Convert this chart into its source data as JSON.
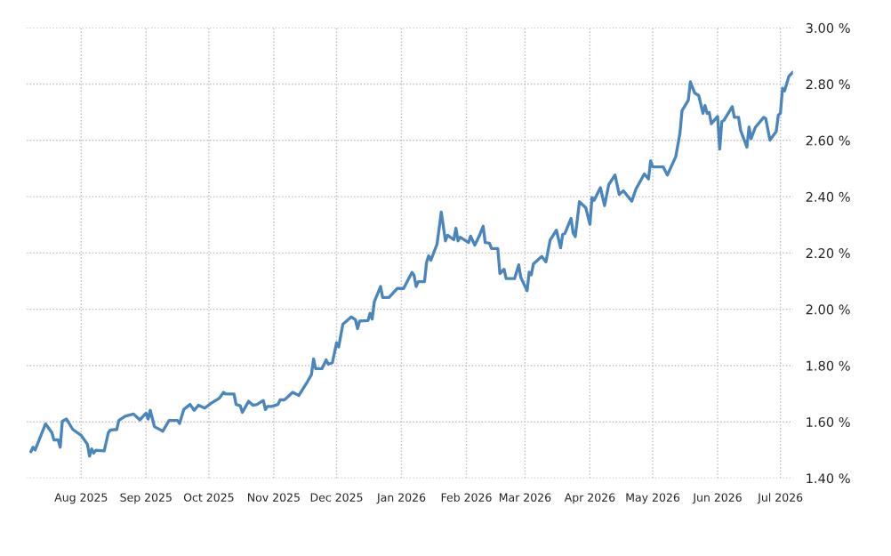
{
  "chart_data": {
    "type": "line",
    "x": [
      "2025-07-08",
      "2025-07-09",
      "2025-07-10",
      "2025-07-15",
      "2025-07-18",
      "2025-07-19",
      "2025-07-21",
      "2025-07-22",
      "2025-07-23",
      "2025-07-25",
      "2025-07-28",
      "2025-08-01",
      "2025-08-04",
      "2025-08-05",
      "2025-08-06",
      "2025-08-07",
      "2025-08-08",
      "2025-08-12",
      "2025-08-14",
      "2025-08-15",
      "2025-08-18",
      "2025-08-19",
      "2025-08-22",
      "2025-08-26",
      "2025-08-29",
      "2025-09-01",
      "2025-09-02",
      "2025-09-03",
      "2025-09-05",
      "2025-09-07",
      "2025-09-09",
      "2025-09-12",
      "2025-09-16",
      "2025-09-17",
      "2025-09-19",
      "2025-09-22",
      "2025-09-24",
      "2025-09-26",
      "2025-09-29",
      "2025-10-02",
      "2025-10-06",
      "2025-10-08",
      "2025-10-09",
      "2025-10-13",
      "2025-10-14",
      "2025-10-16",
      "2025-10-17",
      "2025-10-20",
      "2025-10-22",
      "2025-10-24",
      "2025-10-27",
      "2025-10-28",
      "2025-10-29",
      "2025-10-31",
      "2025-11-03",
      "2025-11-04",
      "2025-11-06",
      "2025-11-07",
      "2025-11-10",
      "2025-11-13",
      "2025-11-17",
      "2025-11-19",
      "2025-11-20",
      "2025-11-21",
      "2025-11-24",
      "2025-11-26",
      "2025-11-27",
      "2025-11-29",
      "2025-12-01",
      "2025-12-02",
      "2025-12-04",
      "2025-12-08",
      "2025-12-10",
      "2025-12-11",
      "2025-12-12",
      "2025-12-16",
      "2025-12-17",
      "2025-12-18",
      "2025-12-19",
      "2025-12-22",
      "2025-12-23",
      "2025-12-26",
      "2025-12-30",
      "2026-01-02",
      "2026-01-06",
      "2026-01-07",
      "2026-01-08",
      "2026-01-09",
      "2026-01-12",
      "2026-01-13",
      "2026-01-14",
      "2026-01-15",
      "2026-01-18",
      "2026-01-20",
      "2026-01-22",
      "2026-01-23",
      "2026-01-26",
      "2026-01-27",
      "2026-01-28",
      "2026-01-29",
      "2026-02-02",
      "2026-02-03",
      "2026-02-05",
      "2026-02-07",
      "2026-02-09",
      "2026-02-10",
      "2026-02-12",
      "2026-02-13",
      "2026-02-16",
      "2026-02-17",
      "2026-02-19",
      "2026-02-20",
      "2026-02-24",
      "2026-02-26",
      "2026-02-27",
      "2026-03-02",
      "2026-03-03",
      "2026-03-04",
      "2026-03-05",
      "2026-03-09",
      "2026-03-11",
      "2026-03-13",
      "2026-03-16",
      "2026-03-18",
      "2026-03-19",
      "2026-03-20",
      "2026-03-23",
      "2026-03-24",
      "2026-03-25",
      "2026-03-27",
      "2026-03-30",
      "2026-04-01",
      "2026-04-02",
      "2026-04-03",
      "2026-04-06",
      "2026-04-08",
      "2026-04-10",
      "2026-04-13",
      "2026-04-15",
      "2026-04-17",
      "2026-04-21",
      "2026-04-23",
      "2026-04-27",
      "2026-04-29",
      "2026-04-30",
      "2026-05-01",
      "2026-05-06",
      "2026-05-08",
      "2026-05-12",
      "2026-05-14",
      "2026-05-15",
      "2026-05-18",
      "2026-05-19",
      "2026-05-21",
      "2026-05-23",
      "2026-05-25",
      "2026-05-26",
      "2026-05-27",
      "2026-05-28",
      "2026-05-29",
      "2026-06-01",
      "2026-06-02",
      "2026-06-03",
      "2026-06-04",
      "2026-06-08",
      "2026-06-09",
      "2026-06-11",
      "2026-06-12",
      "2026-06-15",
      "2026-06-16",
      "2026-06-17",
      "2026-06-19",
      "2026-06-23",
      "2026-06-24",
      "2026-06-26",
      "2026-06-29",
      "2026-06-30",
      "2026-07-01",
      "2026-07-02",
      "2026-07-03",
      "2026-07-05",
      "2026-07-07"
    ],
    "series": [
      {
        "color": "#4a86bd",
        "values": [
          1.494,
          1.51,
          1.5,
          1.593,
          1.562,
          1.536,
          1.536,
          1.51,
          1.602,
          1.61,
          1.573,
          1.552,
          1.52,
          1.478,
          1.504,
          1.489,
          1.499,
          1.497,
          1.562,
          1.571,
          1.573,
          1.605,
          1.62,
          1.628,
          1.607,
          1.631,
          1.61,
          1.641,
          1.583,
          1.575,
          1.567,
          1.605,
          1.605,
          1.594,
          1.644,
          1.662,
          1.641,
          1.659,
          1.649,
          1.666,
          1.684,
          1.705,
          1.699,
          1.699,
          1.662,
          1.657,
          1.634,
          1.673,
          1.659,
          1.662,
          1.676,
          1.644,
          1.655,
          1.655,
          1.662,
          1.678,
          1.678,
          1.684,
          1.705,
          1.694,
          1.742,
          1.768,
          1.824,
          1.789,
          1.789,
          1.82,
          1.805,
          1.81,
          1.881,
          1.866,
          1.947,
          1.973,
          1.963,
          1.931,
          1.958,
          1.96,
          1.986,
          1.965,
          2.026,
          2.081,
          2.042,
          2.042,
          2.074,
          2.074,
          2.131,
          2.121,
          2.081,
          2.098,
          2.098,
          2.168,
          2.19,
          2.174,
          2.232,
          2.345,
          2.243,
          2.263,
          2.247,
          2.288,
          2.243,
          2.256,
          2.237,
          2.26,
          2.228,
          2.258,
          2.295,
          2.237,
          2.235,
          2.216,
          2.216,
          2.127,
          2.142,
          2.109,
          2.109,
          2.158,
          2.113,
          2.066,
          2.132,
          2.122,
          2.161,
          2.188,
          2.168,
          2.246,
          2.281,
          2.218,
          2.266,
          2.269,
          2.323,
          2.271,
          2.258,
          2.382,
          2.361,
          2.302,
          2.397,
          2.387,
          2.432,
          2.368,
          2.443,
          2.477,
          2.408,
          2.421,
          2.384,
          2.427,
          2.481,
          2.463,
          2.527,
          2.506,
          2.506,
          2.477,
          2.542,
          2.625,
          2.706,
          2.743,
          2.808,
          2.769,
          2.759,
          2.696,
          2.724,
          2.696,
          2.699,
          2.659,
          2.685,
          2.569,
          2.667,
          2.671,
          2.72,
          2.682,
          2.682,
          2.635,
          2.576,
          2.648,
          2.606,
          2.646,
          2.682,
          2.677,
          2.601,
          2.632,
          2.69,
          2.696,
          2.785,
          2.776,
          2.827,
          2.843
        ]
      }
    ],
    "xlim": [
      "2025-07-06",
      "2026-07-07"
    ],
    "xticks": [
      {
        "value": "2025-08-01",
        "label": "Aug 2025"
      },
      {
        "value": "2025-09-01",
        "label": "Sep 2025"
      },
      {
        "value": "2025-10-01",
        "label": "Oct 2025"
      },
      {
        "value": "2025-11-01",
        "label": "Nov 2025"
      },
      {
        "value": "2025-12-01",
        "label": "Dec 2025"
      },
      {
        "value": "2026-01-01",
        "label": "Jan 2026"
      },
      {
        "value": "2026-02-01",
        "label": "Feb 2026"
      },
      {
        "value": "2026-03-01",
        "label": "Mar 2026"
      },
      {
        "value": "2026-04-01",
        "label": "Apr 2026"
      },
      {
        "value": "2026-05-01",
        "label": "May 2026"
      },
      {
        "value": "2026-06-01",
        "label": "Jun 2026"
      },
      {
        "value": "2026-07-01",
        "label": "Jul 2026"
      }
    ],
    "ylim": [
      1.4,
      3.0
    ],
    "yticks": [
      {
        "value": 1.4,
        "label": "1.40 %"
      },
      {
        "value": 1.6,
        "label": "1.60 %"
      },
      {
        "value": 1.8,
        "label": "1.80 %"
      },
      {
        "value": 2.0,
        "label": "2.00 %"
      },
      {
        "value": 2.2,
        "label": "2.20 %"
      },
      {
        "value": 2.4,
        "label": "2.40 %"
      },
      {
        "value": 2.6,
        "label": "2.60 %"
      },
      {
        "value": 2.8,
        "label": "2.80 %"
      },
      {
        "value": 3.0,
        "label": "3.00 %"
      }
    ],
    "grid": true,
    "legend": false,
    "line_style": "solid",
    "marker": "none"
  }
}
